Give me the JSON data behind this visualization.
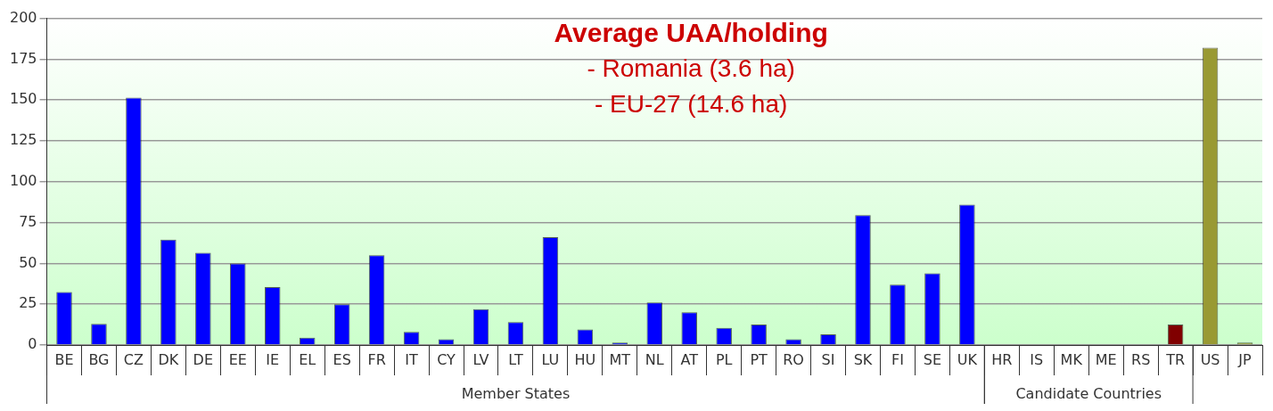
{
  "chart_data": {
    "type": "bar",
    "title": "Average UAA/holding",
    "annotations": [
      "- Romania (3.6 ha)",
      "- EU-27 (14.6 ha)",
      "Member States",
      "Candidate Countries"
    ],
    "categories": [
      "BE",
      "BG",
      "CZ",
      "DK",
      "DE",
      "EE",
      "IE",
      "EL",
      "ES",
      "FR",
      "IT",
      "CY",
      "LV",
      "LT",
      "LU",
      "HU",
      "MT",
      "NL",
      "AT",
      "PL",
      "PT",
      "RO",
      "SI",
      "SK",
      "FI",
      "SE",
      "UK",
      "HR",
      "IS",
      "MK",
      "ME",
      "RS",
      "TR",
      "US",
      "JP"
    ],
    "values": [
      32.5,
      13,
      151.5,
      64.5,
      56.5,
      50,
      35.5,
      4.5,
      25,
      55,
      8,
      3.5,
      22,
      14,
      66,
      9.5,
      1.5,
      26,
      20,
      10.5,
      12.5,
      3.5,
      6.5,
      79.5,
      37,
      44,
      86,
      null,
      null,
      null,
      null,
      null,
      12.5,
      182,
      1.5
    ],
    "colors": [
      "#0000ff",
      "#0000ff",
      "#0000ff",
      "#0000ff",
      "#0000ff",
      "#0000ff",
      "#0000ff",
      "#0000ff",
      "#0000ff",
      "#0000ff",
      "#0000ff",
      "#0000ff",
      "#0000ff",
      "#0000ff",
      "#0000ff",
      "#0000ff",
      "#0000ff",
      "#0000ff",
      "#0000ff",
      "#0000ff",
      "#0000ff",
      "#0000ff",
      "#0000ff",
      "#0000ff",
      "#0000ff",
      "#0000ff",
      "#0000ff",
      "#0000ff",
      "#0000ff",
      "#0000ff",
      "#0000ff",
      "#0000ff",
      "#800000",
      "#999933",
      "#999933"
    ],
    "ylim": [
      0,
      200
    ],
    "yticks": [
      0,
      25,
      50,
      75,
      100,
      125,
      150,
      175,
      200
    ],
    "grid": "y",
    "legend": false
  }
}
